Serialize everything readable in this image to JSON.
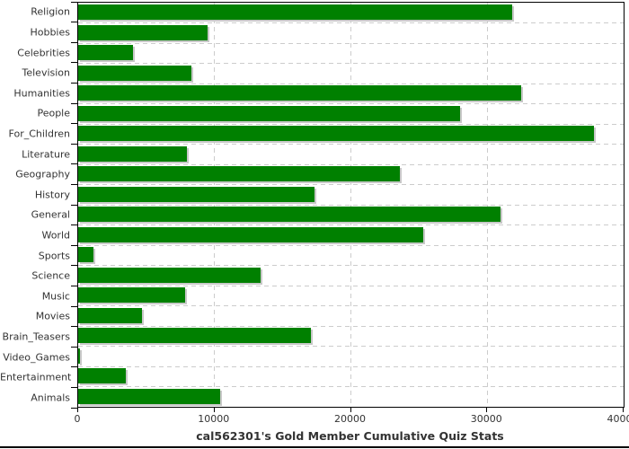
{
  "chart_data": {
    "type": "bar",
    "orientation": "horizontal",
    "title": "cal562301's Gold Member Cumulative Quiz Stats",
    "categories": [
      "Religion",
      "Hobbies",
      "Celebrities",
      "Television",
      "Humanities",
      "People",
      "For_Children",
      "Literature",
      "Geography",
      "History",
      "General",
      "World",
      "Sports",
      "Science",
      "Music",
      "Movies",
      "Brain_Teasers",
      "Video_Games",
      "Entertainment",
      "Animals"
    ],
    "values": [
      31800,
      9500,
      4000,
      8300,
      32500,
      28000,
      37800,
      8000,
      23600,
      17300,
      31000,
      25300,
      1100,
      13400,
      7850,
      4700,
      17100,
      150,
      3500,
      10400
    ],
    "xlabel": "",
    "ylabel": "",
    "xlim": [
      0,
      40000
    ],
    "x_ticks": [
      0,
      10000,
      20000,
      30000,
      40000
    ],
    "x_tick_labels": [
      "0",
      "10000",
      "20000",
      "30000",
      "40000"
    ],
    "grid": "dashed",
    "legend": "none",
    "colors": {
      "bar": "#008000",
      "bar_shadow": "#c8c8c8",
      "grid": "#cccccc",
      "axis": "#000000",
      "text": "#333333",
      "background": "#ffffff"
    }
  }
}
